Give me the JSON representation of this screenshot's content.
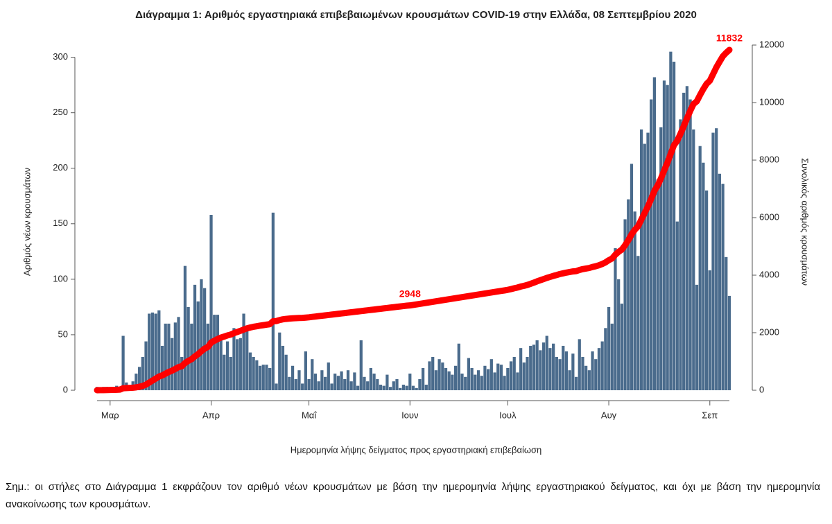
{
  "chart_data": {
    "type": "bar",
    "title": "Διάγραμμα 1: Αριθμός εργαστηριακά επιβεβαιωμένων κρουσμάτων COVID-19 στην Ελλάδα, 08 Σεπτεμβρίου 2020",
    "xlabel": "Ημερομηνία λήψης δείγματος προς εργαστηριακή επιβεβαίωση",
    "ylabel": "Αριθμός νέων κρουσμάτων",
    "y2label": "Συνολικός αριθμός κρουσμάτων",
    "note": "Σημ.: οι στήλες στο Διάγραμμα 1 εκφράζουν τον αριθμό νέων κρουσμάτων με βάση την ημερομηνία λήψης εργαστηριακού δείγματος, και όχι με βάση την ημερομηνία ανακοίνωσης των κρουσμάτων.",
    "categories": [
      null,
      null,
      null,
      null,
      "Μαρ",
      null,
      null,
      null,
      null,
      null,
      null,
      null,
      null,
      null,
      null,
      null,
      null,
      null,
      null,
      null,
      null,
      null,
      null,
      null,
      null,
      null,
      null,
      null,
      null,
      null,
      null,
      null,
      null,
      null,
      null,
      "Απρ",
      null,
      null,
      null,
      null,
      null,
      null,
      null,
      null,
      null,
      null,
      null,
      null,
      null,
      null,
      null,
      null,
      null,
      null,
      null,
      null,
      null,
      null,
      null,
      null,
      null,
      null,
      null,
      null,
      null,
      "Μαΐ",
      null,
      null,
      null,
      null,
      null,
      null,
      null,
      null,
      null,
      null,
      null,
      null,
      null,
      null,
      null,
      null,
      null,
      null,
      null,
      null,
      null,
      null,
      null,
      null,
      null,
      null,
      null,
      null,
      null,
      null,
      "Ιουν",
      null,
      null,
      null,
      null,
      null,
      null,
      null,
      null,
      null,
      null,
      null,
      null,
      null,
      null,
      null,
      null,
      null,
      null,
      null,
      null,
      null,
      null,
      null,
      null,
      null,
      null,
      null,
      null,
      null,
      "Ιουλ",
      null,
      null,
      null,
      null,
      null,
      null,
      null,
      null,
      null,
      null,
      null,
      null,
      null,
      null,
      null,
      null,
      null,
      null,
      null,
      null,
      null,
      null,
      null,
      null,
      null,
      null,
      null,
      null,
      null,
      null,
      "Αυγ",
      null,
      null,
      null,
      null,
      null,
      null,
      null,
      null,
      null,
      null,
      null,
      null,
      null,
      null,
      null,
      null,
      null,
      null,
      null,
      null,
      null,
      null,
      null,
      null,
      null,
      null,
      null,
      null,
      null,
      null,
      "Σεπ",
      null,
      null,
      null,
      null,
      null,
      null
    ],
    "series": [
      {
        "type": "bar",
        "color": "#4a6b8c",
        "values": [
          3,
          1,
          3,
          3,
          2,
          1,
          4,
          2,
          49,
          7,
          3,
          8,
          15,
          21,
          30,
          44,
          69,
          70,
          69,
          72,
          40,
          60,
          60,
          47,
          61,
          66,
          30,
          112,
          75,
          60,
          95,
          80,
          100,
          92,
          60,
          158,
          68,
          68,
          50,
          32,
          44,
          30,
          56,
          46,
          47,
          69,
          55,
          34,
          30,
          27,
          22,
          23,
          23,
          20,
          160,
          6,
          52,
          40,
          32,
          12,
          22,
          10,
          18,
          6,
          35,
          10,
          28,
          15,
          8,
          18,
          12,
          25,
          6,
          15,
          13,
          17,
          10,
          18,
          8,
          16,
          4,
          45,
          12,
          8,
          20,
          15,
          10,
          5,
          4,
          14,
          3,
          8,
          10,
          2,
          5,
          4,
          15,
          4,
          2,
          10,
          20,
          5,
          26,
          30,
          18,
          28,
          25,
          20,
          17,
          14,
          22,
          42,
          15,
          12,
          29,
          20,
          14,
          18,
          13,
          22,
          19,
          28,
          16,
          24,
          23,
          13,
          20,
          26,
          30,
          16,
          38,
          25,
          30,
          40,
          41,
          45,
          36,
          43,
          49,
          38,
          42,
          30,
          28,
          40,
          35,
          18,
          33,
          12,
          46,
          30,
          22,
          18,
          35,
          28,
          38,
          44,
          56,
          75,
          60,
          128,
          100,
          78,
          154,
          172,
          204,
          161,
          121,
          235,
          222,
          232,
          262,
          282,
          190,
          237,
          279,
          275,
          305,
          296,
          152,
          244,
          268,
          274,
          262,
          235,
          95,
          220,
          205,
          180,
          108,
          232,
          236,
          195,
          186,
          120,
          85
        ]
      },
      {
        "type": "line",
        "axis": "y2",
        "color": "#ff0000",
        "values": [
          0,
          3,
          4,
          7,
          9,
          13,
          15,
          20,
          70,
          75,
          80,
          88,
          100,
          120,
          150,
          195,
          265,
          335,
          405,
          475,
          515,
          575,
          635,
          680,
          740,
          805,
          835,
          945,
          1020,
          1080,
          1175,
          1255,
          1355,
          1445,
          1505,
          1660,
          1720,
          1780,
          1830,
          1865,
          1905,
          1935,
          1985,
          2025,
          2065,
          2110,
          2150,
          2180,
          2205,
          2225,
          2245,
          2262,
          2280,
          2295,
          2400,
          2405,
          2440,
          2465,
          2480,
          2490,
          2500,
          2505,
          2512,
          2516,
          2525,
          2535,
          2549,
          2562,
          2576,
          2589,
          2603,
          2616,
          2630,
          2643,
          2657,
          2670,
          2684,
          2697,
          2711,
          2724,
          2738,
          2751,
          2765,
          2778,
          2792,
          2805,
          2819,
          2832,
          2846,
          2859,
          2873,
          2886,
          2900,
          2913,
          2927,
          2940,
          2948,
          2966,
          2984,
          3002,
          3020,
          3038,
          3056,
          3074,
          3092,
          3110,
          3128,
          3146,
          3164,
          3182,
          3200,
          3218,
          3236,
          3254,
          3272,
          3290,
          3308,
          3326,
          3344,
          3362,
          3380,
          3398,
          3416,
          3434,
          3452,
          3470,
          3490,
          3515,
          3545,
          3570,
          3605,
          3630,
          3660,
          3700,
          3740,
          3785,
          3825,
          3865,
          3905,
          3940,
          3975,
          4005,
          4040,
          4065,
          4090,
          4110,
          4130,
          4140,
          4180,
          4210,
          4230,
          4250,
          4285,
          4310,
          4345,
          4390,
          4445,
          4520,
          4580,
          4710,
          4810,
          4890,
          5040,
          5215,
          5420,
          5580,
          5700,
          5935,
          6160,
          6390,
          6650,
          6930,
          7120,
          7360,
          7640,
          7915,
          8220,
          8520,
          8670,
          8915,
          9180,
          9455,
          9715,
          9950,
          10045,
          10265,
          10470,
          10650,
          10760,
          10990,
          11225,
          11420,
          11610,
          11730,
          11832
        ],
        "value_labels": [
          null,
          null,
          null,
          null,
          null,
          null,
          null,
          null,
          null,
          null,
          null,
          null,
          null,
          null,
          null,
          null,
          null,
          null,
          null,
          null,
          null,
          null,
          null,
          null,
          null,
          null,
          null,
          null,
          null,
          null,
          null,
          null,
          null,
          null,
          null,
          null,
          null,
          null,
          null,
          null,
          null,
          null,
          null,
          null,
          null,
          null,
          null,
          null,
          null,
          null,
          null,
          null,
          null,
          null,
          null,
          null,
          null,
          null,
          null,
          null,
          null,
          null,
          null,
          null,
          null,
          null,
          null,
          null,
          null,
          null,
          null,
          null,
          null,
          null,
          null,
          null,
          null,
          null,
          null,
          null,
          null,
          null,
          null,
          null,
          null,
          null,
          null,
          null,
          null,
          null,
          null,
          null,
          null,
          null,
          null,
          null,
          "2948",
          null,
          null,
          null,
          null,
          null,
          null,
          null,
          null,
          null,
          null,
          null,
          null,
          null,
          null,
          null,
          null,
          null,
          null,
          null,
          null,
          null,
          null,
          null,
          null,
          null,
          null,
          null,
          null,
          null,
          null,
          null,
          null,
          null,
          null,
          null,
          null,
          null,
          null,
          null,
          null,
          null,
          null,
          null,
          null,
          null,
          null,
          null,
          null,
          null,
          null,
          null,
          null,
          null,
          null,
          null,
          null,
          null,
          null,
          null,
          null,
          null,
          null,
          null,
          null,
          null,
          null,
          null,
          null,
          null,
          null,
          null,
          null,
          null,
          null,
          null,
          null,
          null,
          null,
          null,
          null,
          null,
          null,
          null,
          null,
          null,
          null,
          null,
          null,
          null,
          null,
          null,
          null,
          null,
          null,
          null,
          null,
          null,
          "11832"
        ]
      }
    ],
    "ylim": [
      0,
      311
    ],
    "yticks": [
      0,
      50,
      100,
      150,
      200,
      250,
      300
    ],
    "y2lim": [
      0,
      12000
    ],
    "y2ticks": [
      0,
      2000,
      4000,
      6000,
      8000,
      10000,
      12000
    ]
  }
}
